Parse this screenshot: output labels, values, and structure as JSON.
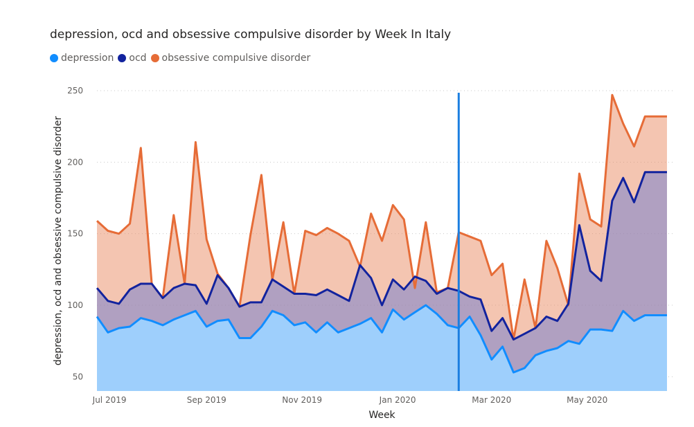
{
  "colors": {
    "depression": "#118DFF",
    "ocd": "#12239E",
    "obsessive": "#E66C37"
  },
  "chart_data": {
    "type": "area",
    "title": "depression, ocd and obsessive compulsive disorder by Week In Italy",
    "xlabel": "Week",
    "ylabel": "depression, ocd and obsessive compulsive disorder",
    "ylim": [
      40,
      250
    ],
    "yticks": [
      50,
      100,
      150,
      200,
      250
    ],
    "x_range": [
      "2019-06-23",
      "2020-06-21"
    ],
    "x_ticks": [
      {
        "label": "Jul 2019",
        "date": "2019-07-01"
      },
      {
        "label": "Sep 2019",
        "date": "2019-09-01"
      },
      {
        "label": "Nov 2019",
        "date": "2019-11-01"
      },
      {
        "label": "Jan 2020",
        "date": "2020-01-01"
      },
      {
        "label": "Mar 2020",
        "date": "2020-03-01"
      },
      {
        "label": "May 2020",
        "date": "2020-05-01"
      }
    ],
    "grid": true,
    "legend_position": "top-left",
    "reference_line_date": "2020-02-09",
    "x": [
      "2019-06-23",
      "2019-06-30",
      "2019-07-07",
      "2019-07-14",
      "2019-07-21",
      "2019-07-28",
      "2019-08-04",
      "2019-08-11",
      "2019-08-18",
      "2019-08-25",
      "2019-09-01",
      "2019-09-08",
      "2019-09-15",
      "2019-09-22",
      "2019-09-29",
      "2019-10-06",
      "2019-10-13",
      "2019-10-20",
      "2019-10-27",
      "2019-11-03",
      "2019-11-10",
      "2019-11-17",
      "2019-11-24",
      "2019-12-01",
      "2019-12-08",
      "2019-12-15",
      "2019-12-22",
      "2019-12-29",
      "2020-01-05",
      "2020-01-12",
      "2020-01-19",
      "2020-01-26",
      "2020-02-02",
      "2020-02-09",
      "2020-02-16",
      "2020-02-23",
      "2020-03-01",
      "2020-03-08",
      "2020-03-15",
      "2020-03-22",
      "2020-03-29",
      "2020-04-05",
      "2020-04-12",
      "2020-04-19",
      "2020-04-26",
      "2020-05-03",
      "2020-05-10",
      "2020-05-17",
      "2020-05-24",
      "2020-05-31",
      "2020-06-07",
      "2020-06-14",
      "2020-06-21"
    ],
    "series": [
      {
        "name": "depression",
        "values": [
          92,
          81,
          84,
          85,
          91,
          89,
          86,
          90,
          93,
          96,
          85,
          89,
          90,
          77,
          77,
          85,
          96,
          93,
          86,
          88,
          81,
          88,
          81,
          84,
          87,
          91,
          81,
          97,
          90,
          95,
          100,
          94,
          86,
          84,
          92,
          79,
          62,
          71,
          53,
          56,
          65,
          68,
          70,
          75,
          73,
          83,
          83,
          82,
          96,
          89,
          93,
          93,
          93
        ]
      },
      {
        "name": "ocd",
        "values": [
          112,
          103,
          101,
          111,
          115,
          115,
          105,
          112,
          115,
          114,
          101,
          121,
          112,
          99,
          102,
          102,
          118,
          113,
          108,
          108,
          107,
          111,
          107,
          103,
          128,
          119,
          100,
          118,
          111,
          120,
          117,
          108,
          112,
          110,
          106,
          104,
          82,
          91,
          76,
          80,
          84,
          92,
          89,
          101,
          156,
          124,
          117,
          173,
          189,
          172,
          193,
          193,
          193
        ]
      },
      {
        "name": "obsessive compulsive disorder",
        "values": [
          159,
          152,
          150,
          157,
          210,
          115,
          105,
          163,
          115,
          214,
          146,
          122,
          112,
          99,
          149,
          191,
          118,
          158,
          108,
          152,
          149,
          154,
          150,
          145,
          127,
          164,
          145,
          170,
          160,
          112,
          158,
          109,
          112,
          151,
          148,
          145,
          121,
          129,
          76,
          118,
          84,
          145,
          126,
          100,
          192,
          160,
          155,
          247,
          227,
          211,
          232,
          232,
          232
        ]
      }
    ]
  }
}
